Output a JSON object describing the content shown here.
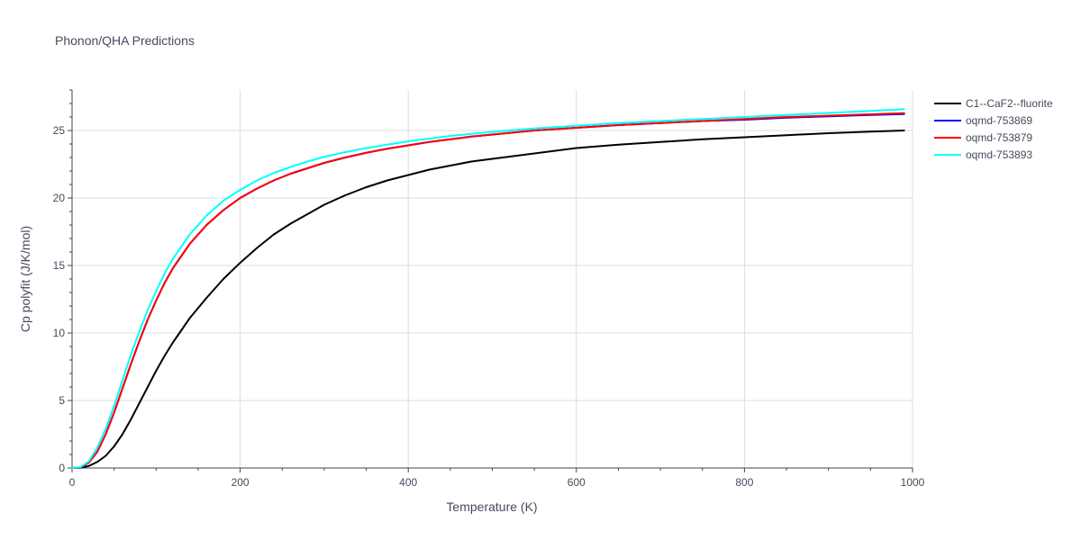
{
  "chart_data": {
    "type": "line",
    "title": "Phonon/QHA Predictions",
    "xlabel": "Temperature (K)",
    "ylabel": "Cp polyfit (J/K/mol)",
    "xlim": [
      0,
      1000
    ],
    "ylim": [
      0,
      28
    ],
    "xticks": [
      0,
      200,
      400,
      600,
      800,
      1000
    ],
    "yticks": [
      0,
      5,
      10,
      15,
      20,
      25
    ],
    "grid": true,
    "legend_position": "top-right",
    "series": [
      {
        "name": "C1--CaF2--fluorite",
        "color": "#000000",
        "x": [
          0,
          10,
          20,
          30,
          40,
          50,
          60,
          70,
          80,
          90,
          100,
          110,
          120,
          140,
          160,
          180,
          200,
          220,
          240,
          260,
          280,
          300,
          325,
          350,
          375,
          400,
          425,
          450,
          475,
          500,
          550,
          600,
          650,
          700,
          750,
          800,
          850,
          900,
          950,
          990
        ],
        "y": [
          0,
          0.02,
          0.15,
          0.45,
          0.9,
          1.6,
          2.5,
          3.6,
          4.8,
          6.0,
          7.2,
          8.3,
          9.3,
          11.1,
          12.6,
          14.0,
          15.2,
          16.3,
          17.3,
          18.1,
          18.8,
          19.5,
          20.2,
          20.8,
          21.3,
          21.7,
          22.1,
          22.4,
          22.7,
          22.9,
          23.3,
          23.7,
          23.95,
          24.15,
          24.35,
          24.5,
          24.65,
          24.8,
          24.92,
          25.0
        ]
      },
      {
        "name": "oqmd-753869",
        "color": "#0000ff",
        "x": [
          0,
          10,
          20,
          30,
          40,
          50,
          60,
          70,
          80,
          90,
          100,
          110,
          120,
          140,
          160,
          180,
          200,
          220,
          240,
          260,
          280,
          300,
          325,
          350,
          375,
          400,
          425,
          450,
          475,
          500,
          550,
          600,
          650,
          700,
          750,
          800,
          850,
          900,
          950,
          990
        ],
        "y": [
          0,
          0.05,
          0.4,
          1.2,
          2.5,
          4.1,
          5.9,
          7.7,
          9.4,
          11.0,
          12.4,
          13.7,
          14.8,
          16.6,
          18.0,
          19.1,
          20.0,
          20.7,
          21.3,
          21.8,
          22.2,
          22.6,
          23.0,
          23.35,
          23.65,
          23.9,
          24.15,
          24.35,
          24.55,
          24.7,
          25.0,
          25.2,
          25.4,
          25.55,
          25.7,
          25.8,
          25.95,
          26.05,
          26.15,
          26.22
        ]
      },
      {
        "name": "oqmd-753879",
        "color": "#ff0000",
        "x": [
          0,
          10,
          20,
          30,
          40,
          50,
          60,
          70,
          80,
          90,
          100,
          110,
          120,
          140,
          160,
          180,
          200,
          220,
          240,
          260,
          280,
          300,
          325,
          350,
          375,
          400,
          425,
          450,
          475,
          500,
          550,
          600,
          650,
          700,
          750,
          800,
          850,
          900,
          950,
          990
        ],
        "y": [
          0,
          0.05,
          0.4,
          1.2,
          2.5,
          4.1,
          5.9,
          7.7,
          9.4,
          11.0,
          12.4,
          13.7,
          14.8,
          16.6,
          18.0,
          19.1,
          20.0,
          20.7,
          21.3,
          21.8,
          22.2,
          22.6,
          23.0,
          23.35,
          23.65,
          23.9,
          24.15,
          24.35,
          24.55,
          24.7,
          25.0,
          25.2,
          25.4,
          25.55,
          25.7,
          25.85,
          26.0,
          26.1,
          26.2,
          26.28
        ]
      },
      {
        "name": "oqmd-753893",
        "color": "#00ffff",
        "x": [
          0,
          10,
          20,
          30,
          40,
          50,
          60,
          70,
          80,
          90,
          100,
          110,
          120,
          140,
          160,
          180,
          200,
          220,
          240,
          260,
          280,
          300,
          325,
          350,
          375,
          400,
          425,
          450,
          475,
          500,
          550,
          600,
          650,
          700,
          750,
          800,
          850,
          900,
          950,
          990
        ],
        "y": [
          0,
          0.07,
          0.5,
          1.5,
          2.9,
          4.6,
          6.5,
          8.4,
          10.1,
          11.7,
          13.1,
          14.4,
          15.5,
          17.3,
          18.7,
          19.8,
          20.6,
          21.3,
          21.85,
          22.3,
          22.7,
          23.05,
          23.4,
          23.7,
          23.95,
          24.2,
          24.4,
          24.6,
          24.75,
          24.9,
          25.15,
          25.35,
          25.55,
          25.7,
          25.85,
          26.0,
          26.15,
          26.3,
          26.45,
          26.58
        ]
      }
    ]
  }
}
